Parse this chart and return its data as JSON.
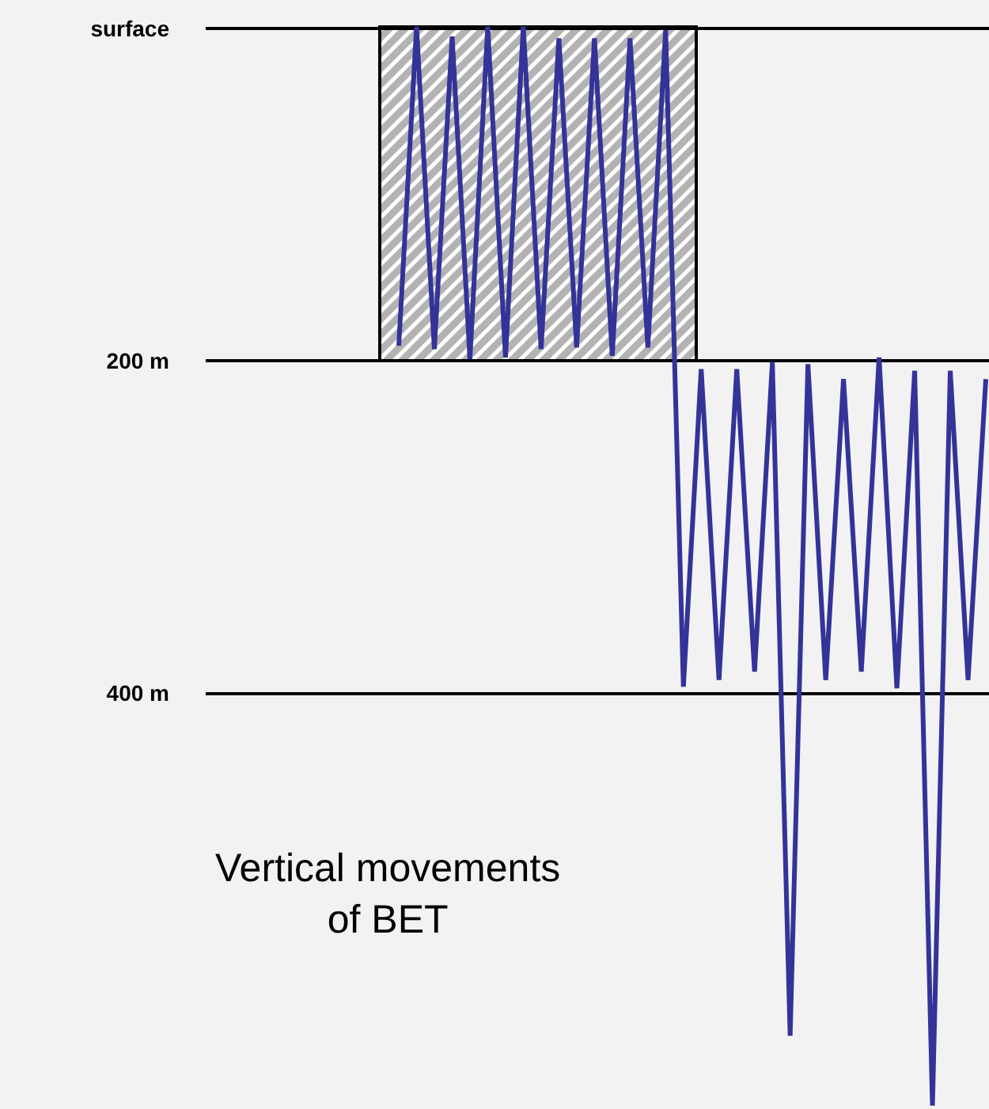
{
  "chart_data": {
    "type": "line",
    "categories": [
      null,
      null,
      null,
      null,
      null,
      null,
      null,
      null,
      null,
      null,
      null,
      null,
      null,
      null,
      null,
      null,
      null,
      null,
      null,
      null,
      null,
      null,
      null,
      null,
      null,
      null,
      null,
      null,
      null,
      null,
      null,
      null,
      null,
      null
    ],
    "series": [
      {
        "color": "#333399",
        "values": [
          191,
          -1,
          193,
          5,
          199,
          -1,
          198,
          -1,
          193,
          6,
          192,
          6,
          197,
          6,
          192,
          1,
          396,
          205,
          392,
          205,
          387,
          201,
          606,
          202,
          392,
          211,
          387,
          198,
          397,
          206,
          648,
          206,
          392,
          211
        ]
      }
    ],
    "ylim": [
      650,
      -17
    ],
    "yticks": [
      {
        "value": 0,
        "label": "surface"
      },
      {
        "value": 200,
        "label": "200 m"
      },
      {
        "value": 400,
        "label": "400 m"
      }
    ],
    "tick_labels": "y",
    "grid": "y",
    "marker": "none",
    "line_style": "solid",
    "annotations": [
      "Vertical movements\nof BET"
    ]
  }
}
